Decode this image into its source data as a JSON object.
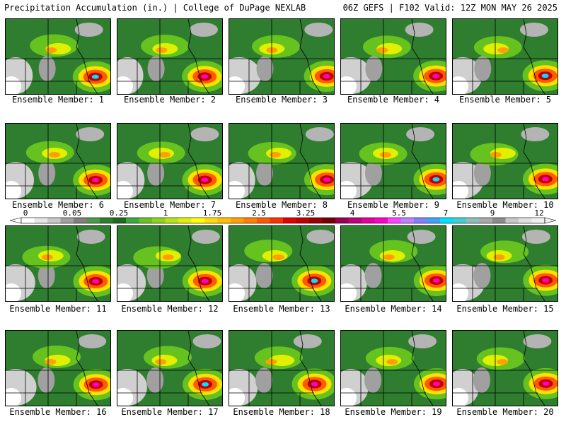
{
  "header": {
    "left": "Precipitation Accumulation (in.) | College of DuPage NEXLAB",
    "right": "06Z GEFS | F102 Valid: 12Z MON MAY 26 2025"
  },
  "members": [
    {
      "label": "Ensemble Member: 1",
      "icon": "precip-map"
    },
    {
      "label": "Ensemble Member: 2",
      "icon": "precip-map"
    },
    {
      "label": "Ensemble Member: 3",
      "icon": "precip-map"
    },
    {
      "label": "Ensemble Member: 4",
      "icon": "precip-map"
    },
    {
      "label": "Ensemble Member: 5",
      "icon": "precip-map"
    },
    {
      "label": "Ensemble Member: 6",
      "icon": "precip-map"
    },
    {
      "label": "Ensemble Member: 7",
      "icon": "precip-map"
    },
    {
      "label": "Ensemble Member: 8",
      "icon": "precip-map"
    },
    {
      "label": "Ensemble Member: 9",
      "icon": "precip-map"
    },
    {
      "label": "Ensemble Member: 10",
      "icon": "precip-map"
    },
    {
      "label": "Ensemble Member: 11",
      "icon": "precip-map"
    },
    {
      "label": "Ensemble Member: 12",
      "icon": "precip-map"
    },
    {
      "label": "Ensemble Member: 13",
      "icon": "precip-map"
    },
    {
      "label": "Ensemble Member: 14",
      "icon": "precip-map"
    },
    {
      "label": "Ensemble Member: 15",
      "icon": "precip-map"
    },
    {
      "label": "Ensemble Member: 16",
      "icon": "precip-map"
    },
    {
      "label": "Ensemble Member: 17",
      "icon": "precip-map"
    },
    {
      "label": "Ensemble Member: 18",
      "icon": "precip-map"
    },
    {
      "label": "Ensemble Member: 19",
      "icon": "precip-map"
    },
    {
      "label": "Ensemble Member: 20",
      "icon": "precip-map"
    }
  ],
  "colorbar": {
    "tick_labels": [
      "0",
      "0.05",
      "0.25",
      "1",
      "1.75",
      "2.5",
      "3.25",
      "4",
      "5.5",
      "7",
      "9",
      "12"
    ],
    "colors": [
      "#ffffff",
      "#e6e6e6",
      "#c8c8c8",
      "#a0a0a0",
      "#7f7f7f",
      "#4a9a4a",
      "#2f7d2f",
      "#1f6a1f",
      "#3ea83e",
      "#66c21f",
      "#8ad41a",
      "#b4e614",
      "#e0f000",
      "#ffff00",
      "#ffe000",
      "#ffc000",
      "#ffa000",
      "#ff8000",
      "#ff5a00",
      "#ff3000",
      "#e60000",
      "#c00000",
      "#9a0000",
      "#780000",
      "#9a0050",
      "#c0007a",
      "#e600a0",
      "#ff00c8",
      "#ff40ff",
      "#c080ff",
      "#8080ff",
      "#40a0ff",
      "#00e0ff",
      "#40d0d0",
      "#8fbcbc",
      "#a8a8a8",
      "#8c8c8c",
      "#c8c8c8",
      "#e0e0e0",
      "#f0f0f0"
    ]
  }
}
